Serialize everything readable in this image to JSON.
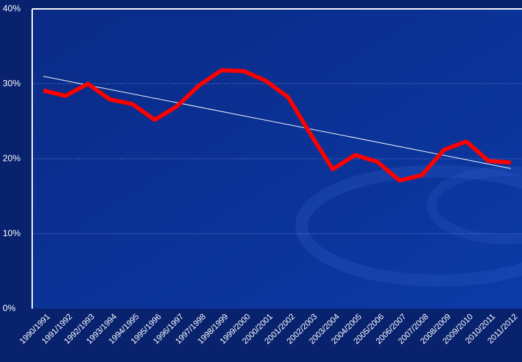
{
  "chart_data": {
    "type": "line",
    "categories": [
      "1990/1991",
      "1991/1992",
      "1992/1993",
      "1993/1994",
      "1994/1995",
      "1995/1996",
      "1996/1997",
      "1997/1998",
      "1998/1999",
      "1999/2000",
      "2000/2001",
      "2001/2002",
      "2002/2003",
      "2003/2004",
      "2004/2005",
      "2005/2006",
      "2006/2007",
      "2007/2008",
      "2008/2009",
      "2009/2010",
      "2010/2011",
      "2011/2012"
    ],
    "values": [
      29.1,
      28.4,
      30.0,
      27.9,
      27.3,
      25.2,
      27.0,
      29.8,
      31.8,
      31.7,
      30.4,
      28.2,
      23.3,
      18.6,
      20.5,
      19.6,
      17.1,
      17.8,
      21.2,
      22.3,
      19.7,
      19.5
    ],
    "color": "#ff0000",
    "trend": [
      31.0,
      18.7
    ],
    "trend_color": "#ffffff",
    "ylim": [
      0,
      40
    ],
    "yticks": [
      {
        "value": 0,
        "label": "0%"
      },
      {
        "value": 10,
        "label": "10%"
      },
      {
        "value": 20,
        "label": "20%"
      },
      {
        "value": 30,
        "label": "30%"
      },
      {
        "value": 40,
        "label": "40%"
      }
    ],
    "grid": true
  }
}
